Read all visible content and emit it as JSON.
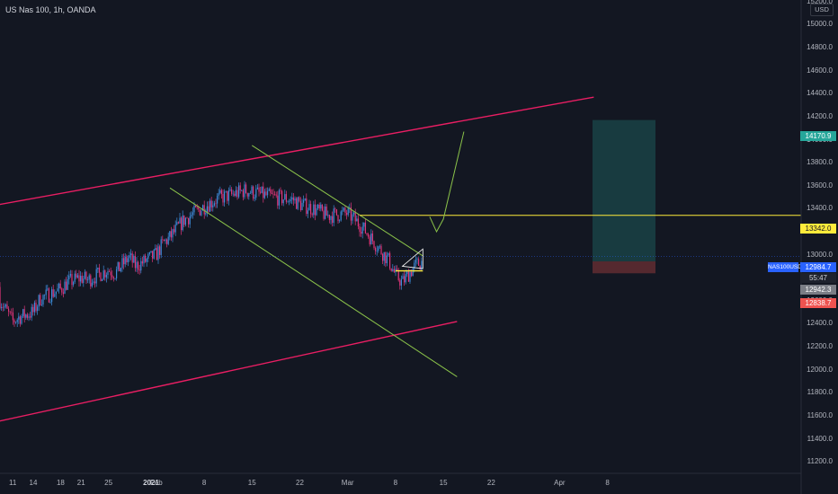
{
  "chart_title": "US Nas 100, 1h, OANDA",
  "currency": "USD",
  "symbol_label": "NAS100USD",
  "y_ticks": [
    "15200.0",
    "15000.0",
    "14800.0",
    "14600.0",
    "14400.0",
    "14200.0",
    "14000.0",
    "13800.0",
    "13600.0",
    "13400.0",
    "13200.0",
    "13000.0",
    "12800.0",
    "12600.0",
    "12400.0",
    "12200.0",
    "12000.0",
    "11800.0",
    "11600.0",
    "11400.0",
    "11200.0"
  ],
  "x_ticks": [
    {
      "label": "14"
    },
    {
      "label": "21"
    },
    {
      "label": "2021",
      "bold": true
    },
    {
      "label": "11"
    },
    {
      "label": "18"
    },
    {
      "label": "25"
    },
    {
      "label": "Feb"
    },
    {
      "label": "8"
    },
    {
      "label": "15"
    },
    {
      "label": "22"
    },
    {
      "label": "Mar"
    },
    {
      "label": "8"
    },
    {
      "label": "15"
    },
    {
      "label": "22"
    },
    {
      "label": "Apr"
    },
    {
      "label": "8"
    }
  ],
  "price_badges": {
    "target": "14170.9",
    "level": "13342.0",
    "current": "12984.7",
    "countdown": "55:47",
    "entry": "12942.3",
    "stop": "12838.7"
  },
  "colors": {
    "background": "#131722",
    "up_candle": "#3d8bd9",
    "down_candle": "#e0357a",
    "channel": "#e91e63",
    "wedge": "#8bc34a",
    "level_line": "#ffeb3b",
    "profit_zone": "#26a69a",
    "loss_zone": "#ef5350",
    "current_price": "#2962ff"
  },
  "chart_data": {
    "type": "candlestick",
    "title": "US Nas 100, 1h, OANDA",
    "y_unit": "USD",
    "ylim": [
      11100,
      15300
    ],
    "x_range": [
      "2021-01-10",
      "2021-04-10"
    ],
    "price_path": [
      [
        "2021-01-08",
        12720
      ],
      [
        "2021-01-09",
        12620
      ],
      [
        "2021-01-11",
        12420
      ],
      [
        "2021-01-12",
        12460
      ],
      [
        "2021-01-14",
        12500
      ],
      [
        "2021-01-15",
        12620
      ],
      [
        "2021-01-18",
        12700
      ],
      [
        "2021-01-19",
        12760
      ],
      [
        "2021-01-21",
        12800
      ],
      [
        "2021-01-22",
        12780
      ],
      [
        "2021-01-25",
        12870
      ],
      [
        "2021-01-26",
        12840
      ],
      [
        "2021-01-28",
        12980
      ],
      [
        "2021-01-29",
        12900
      ],
      [
        "2021-02-01",
        13000
      ],
      [
        "2021-02-02",
        13100
      ],
      [
        "2021-02-03",
        13150
      ],
      [
        "2021-02-05",
        13300
      ],
      [
        "2021-02-08",
        13420
      ],
      [
        "2021-02-10",
        13490
      ],
      [
        "2021-02-12",
        13520
      ],
      [
        "2021-02-14",
        13560
      ],
      [
        "2021-02-16",
        13530
      ],
      [
        "2021-02-18",
        13500
      ],
      [
        "2021-02-21",
        13480
      ],
      [
        "2021-02-22",
        13440
      ],
      [
        "2021-02-24",
        13400
      ],
      [
        "2021-02-26",
        13340
      ],
      [
        "2021-03-01",
        13360
      ],
      [
        "2021-03-03",
        13250
      ],
      [
        "2021-03-05",
        13100
      ],
      [
        "2021-03-07",
        12950
      ],
      [
        "2021-03-08",
        12820
      ],
      [
        "2021-03-09",
        12760
      ],
      [
        "2021-03-10",
        12840
      ],
      [
        "2021-03-11",
        12910
      ],
      [
        "2021-03-12",
        12942
      ]
    ],
    "annotations": {
      "channel_upper": [
        [
          "2021-01-01",
          13350
        ],
        [
          "2021-04-06",
          14370
        ]
      ],
      "channel_lower": [
        [
          "2021-01-01",
          11450
        ],
        [
          "2021-03-17",
          12420
        ]
      ],
      "wedge_upper": [
        [
          "2021-02-15",
          13950
        ],
        [
          "2021-03-12",
          12990
        ]
      ],
      "wedge_lower": [
        [
          "2021-02-03",
          13580
        ],
        [
          "2021-03-17",
          11940
        ]
      ],
      "level": 13342,
      "projection": [
        [
          "2021-03-13",
          13330
        ],
        [
          "2021-03-14",
          13200
        ],
        [
          "2021-03-15",
          13310
        ],
        [
          "2021-03-18",
          14070
        ]
      ],
      "position": {
        "entry": 12942.3,
        "target": 14170.9,
        "stop": 12838.7,
        "start": "2021-03-10",
        "end": "2021-03-21"
      }
    }
  }
}
